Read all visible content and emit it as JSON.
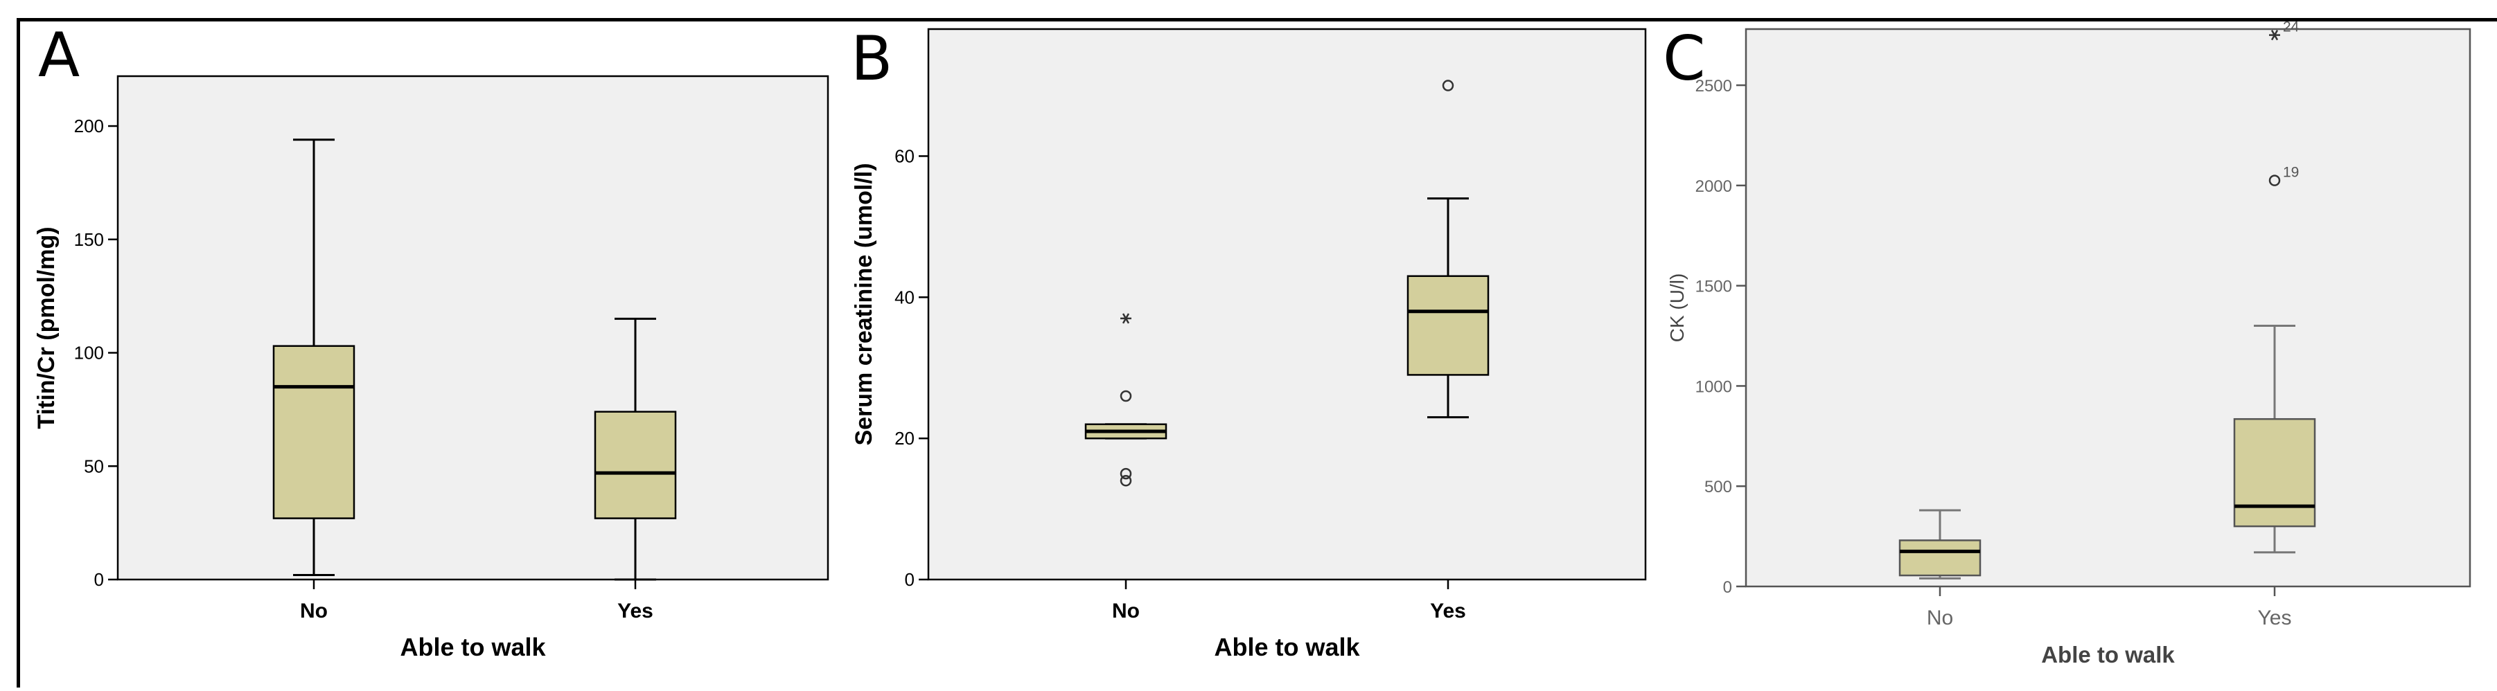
{
  "chart_data": [
    {
      "type": "box",
      "panel_label": "A",
      "title": "",
      "xlabel": "Able to walk",
      "ylabel": "Titin/Cr (pmol/mg)",
      "categories": [
        "No",
        "Yes"
      ],
      "ylim": [
        0,
        222
      ],
      "yticks": [
        0,
        50,
        100,
        150,
        200
      ],
      "grid": false,
      "box_color": "#d3cf9c",
      "background": "#f0f0f0",
      "boxes": [
        {
          "category": "No",
          "min": 2,
          "q1": 27,
          "median": 85,
          "q3": 103,
          "max": 194,
          "outliers": []
        },
        {
          "category": "Yes",
          "min": 0,
          "q1": 27,
          "median": 47,
          "q3": 74,
          "max": 115,
          "outliers": []
        }
      ]
    },
    {
      "type": "box",
      "panel_label": "B",
      "title": "",
      "xlabel": "Able to walk",
      "ylabel": "Serum creatinine (umol/l)",
      "categories": [
        "No",
        "Yes"
      ],
      "ylim": [
        0,
        78
      ],
      "yticks": [
        0,
        20,
        40,
        60
      ],
      "grid": false,
      "box_color": "#d3cf9c",
      "background": "#f0f0f0",
      "boxes": [
        {
          "category": "No",
          "min": 20,
          "q1": 20,
          "median": 21,
          "q3": 22,
          "max": 22,
          "outliers": [
            {
              "value": 26,
              "marker": "circle"
            },
            {
              "value": 15,
              "marker": "circle"
            },
            {
              "value": 14,
              "marker": "circle"
            },
            {
              "value": 37,
              "marker": "star"
            }
          ]
        },
        {
          "category": "Yes",
          "min": 23,
          "q1": 29,
          "median": 38,
          "q3": 43,
          "max": 54,
          "outliers": [
            {
              "value": 70,
              "marker": "circle"
            }
          ]
        }
      ]
    },
    {
      "type": "box",
      "panel_label": "C",
      "title": "",
      "xlabel": "Able to walk",
      "ylabel": "CK (U/l)",
      "categories": [
        "No",
        "Yes"
      ],
      "ylim": [
        0,
        2780
      ],
      "yticks": [
        0,
        500,
        1000,
        1500,
        2000,
        2500
      ],
      "grid": false,
      "box_color": "#d3cf9c",
      "background": "#f0f0f0",
      "boxes": [
        {
          "category": "No",
          "min": 40,
          "q1": 55,
          "median": 175,
          "q3": 230,
          "max": 380,
          "outliers": []
        },
        {
          "category": "Yes",
          "min": 170,
          "q1": 300,
          "median": 400,
          "q3": 835,
          "max": 1300,
          "outliers": [
            {
              "value": 2025,
              "marker": "circle",
              "label": "19"
            },
            {
              "value": 2750,
              "marker": "star",
              "label": "24"
            }
          ]
        }
      ]
    }
  ]
}
